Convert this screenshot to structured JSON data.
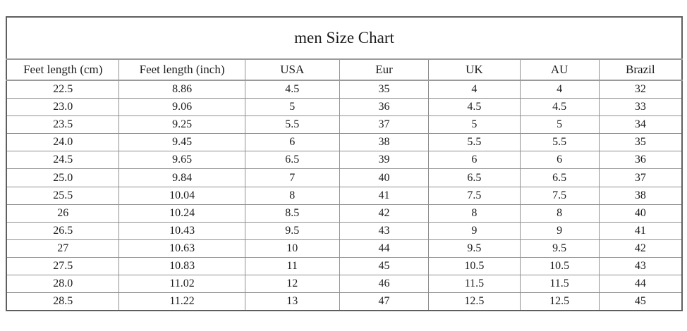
{
  "title": "men Size Chart",
  "colors": {
    "background": "#ffffff",
    "text": "#1c1c1c",
    "grid_line": "#8f8f8f",
    "outer_border": "#5f5f5f"
  },
  "chart_data": {
    "type": "table",
    "title": "men Size Chart",
    "columns": [
      "Feet length (cm)",
      "Feet length (inch)",
      "USA",
      "Eur",
      "UK",
      "AU",
      "Brazil"
    ],
    "rows": [
      [
        "22.5",
        "8.86",
        "4.5",
        "35",
        "4",
        "4",
        "32"
      ],
      [
        "23.0",
        "9.06",
        "5",
        "36",
        "4.5",
        "4.5",
        "33"
      ],
      [
        "23.5",
        "9.25",
        "5.5",
        "37",
        "5",
        "5",
        "34"
      ],
      [
        "24.0",
        "9.45",
        "6",
        "38",
        "5.5",
        "5.5",
        "35"
      ],
      [
        "24.5",
        "9.65",
        "6.5",
        "39",
        "6",
        "6",
        "36"
      ],
      [
        "25.0",
        "9.84",
        "7",
        "40",
        "6.5",
        "6.5",
        "37"
      ],
      [
        "25.5",
        "10.04",
        "8",
        "41",
        "7.5",
        "7.5",
        "38"
      ],
      [
        "26",
        "10.24",
        "8.5",
        "42",
        "8",
        "8",
        "40"
      ],
      [
        "26.5",
        "10.43",
        "9.5",
        "43",
        "9",
        "9",
        "41"
      ],
      [
        "27",
        "10.63",
        "10",
        "44",
        "9.5",
        "9.5",
        "42"
      ],
      [
        "27.5",
        "10.83",
        "11",
        "45",
        "10.5",
        "10.5",
        "43"
      ],
      [
        "28.0",
        "11.02",
        "12",
        "46",
        "11.5",
        "11.5",
        "44"
      ],
      [
        "28.5",
        "11.22",
        "13",
        "47",
        "12.5",
        "12.5",
        "45"
      ]
    ]
  }
}
